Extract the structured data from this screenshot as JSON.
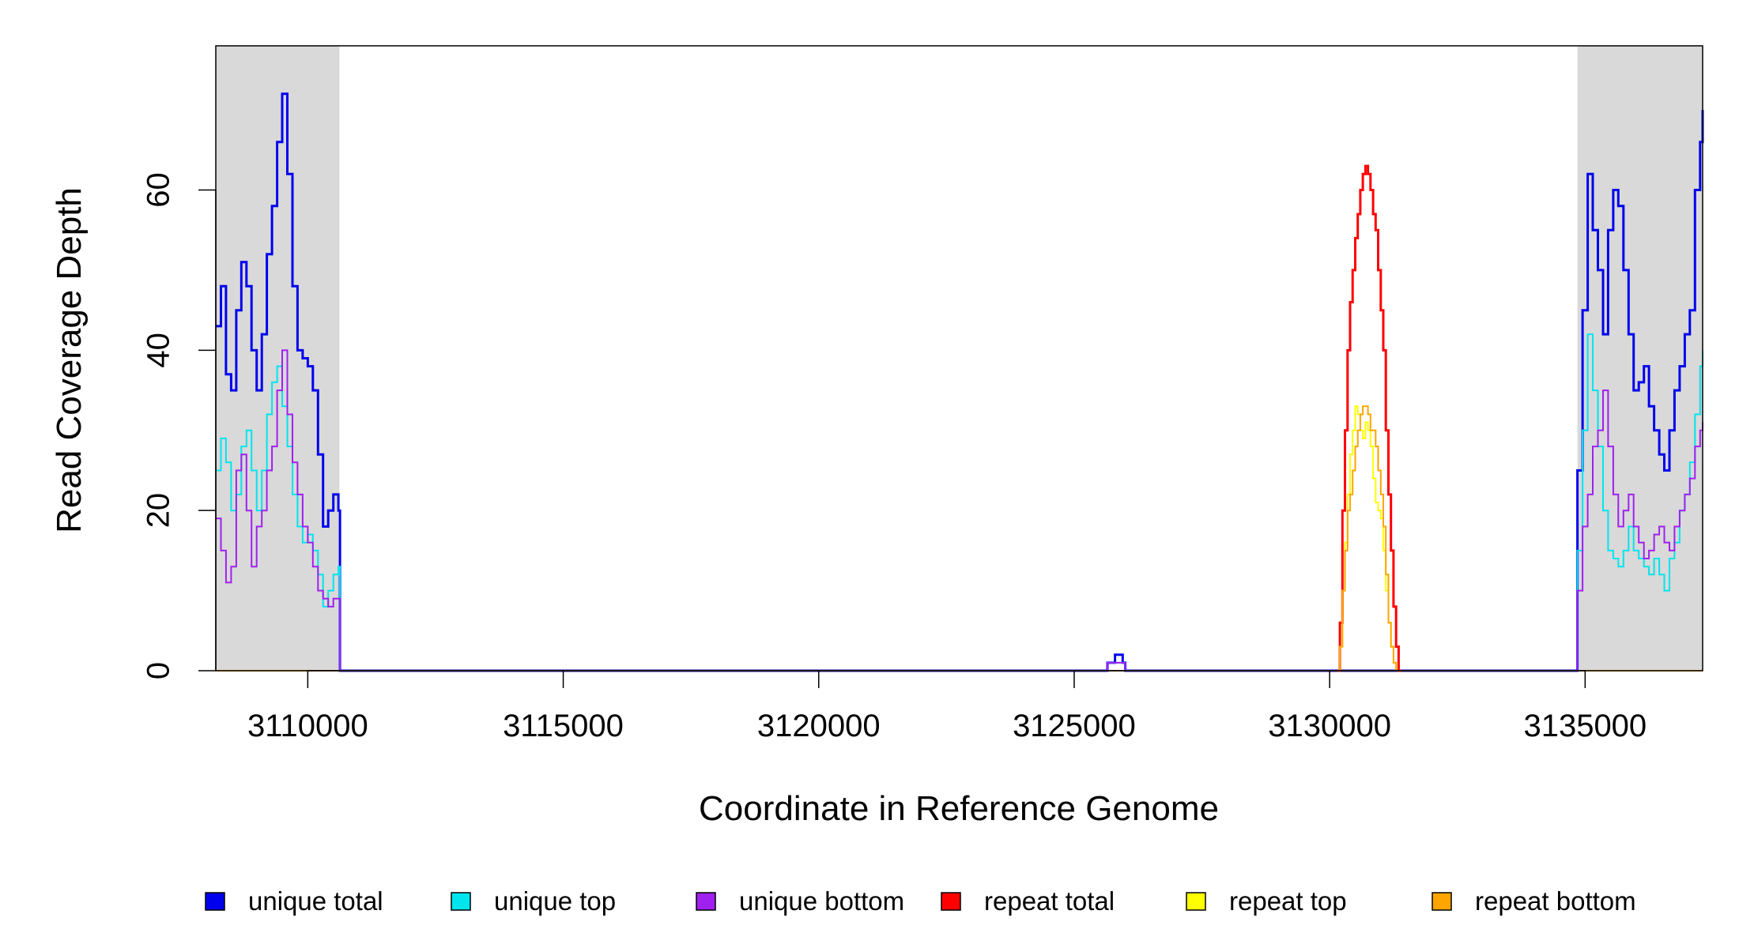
{
  "chart_data": {
    "type": "line",
    "xlabel": "Coordinate in Reference Genome",
    "ylabel": "Read Coverage Depth",
    "xlim": [
      3108200,
      3137300
    ],
    "ylim": [
      0,
      78
    ],
    "x_ticks": [
      3110000,
      3115000,
      3120000,
      3125000,
      3130000,
      3135000
    ],
    "y_ticks": [
      0,
      20,
      40,
      60
    ],
    "shaded_regions": [
      {
        "x_start": 3108200,
        "x_end": 3110620,
        "color": "#d9d9d9"
      },
      {
        "x_start": 3134850,
        "x_end": 3137300,
        "color": "#d9d9d9"
      }
    ],
    "legend_position": "bottom",
    "series": [
      {
        "name": "unique total",
        "color": "#0000ee",
        "width": 3,
        "x": [
          3108200,
          3108300,
          3108400,
          3108500,
          3108600,
          3108700,
          3108800,
          3108900,
          3109000,
          3109100,
          3109200,
          3109300,
          3109400,
          3109500,
          3109600,
          3109700,
          3109800,
          3109900,
          3110000,
          3110100,
          3110200,
          3110300,
          3110400,
          3110500,
          3110600,
          3110630,
          3125600,
          3125650,
          3125800,
          3125950,
          3126000,
          3134800,
          3134850,
          3134950,
          3135050,
          3135150,
          3135250,
          3135350,
          3135450,
          3135550,
          3135650,
          3135750,
          3135850,
          3135950,
          3136050,
          3136150,
          3136250,
          3136350,
          3136450,
          3136550,
          3136650,
          3136750,
          3136850,
          3136950,
          3137050,
          3137150,
          3137250,
          3137300
        ],
        "y": [
          43,
          48,
          37,
          35,
          45,
          51,
          48,
          40,
          35,
          42,
          52,
          58,
          66,
          72,
          62,
          48,
          40,
          39,
          38,
          35,
          27,
          18,
          20,
          22,
          20,
          0,
          0,
          1,
          2,
          1,
          0,
          0,
          25,
          45,
          62,
          55,
          50,
          42,
          55,
          60,
          58,
          50,
          42,
          35,
          36,
          38,
          33,
          30,
          27,
          25,
          30,
          35,
          38,
          42,
          45,
          60,
          66,
          70
        ]
      },
      {
        "name": "unique top",
        "color": "#00e5ee",
        "width": 2,
        "x": [
          3108200,
          3108300,
          3108400,
          3108500,
          3108600,
          3108700,
          3108800,
          3108900,
          3109000,
          3109100,
          3109200,
          3109300,
          3109400,
          3109500,
          3109600,
          3109700,
          3109800,
          3109900,
          3110000,
          3110100,
          3110200,
          3110300,
          3110400,
          3110500,
          3110600,
          3110630,
          3125600,
          3125650,
          3125800,
          3125950,
          3126000,
          3134800,
          3134850,
          3134950,
          3135050,
          3135150,
          3135250,
          3135350,
          3135450,
          3135550,
          3135650,
          3135750,
          3135850,
          3135950,
          3136050,
          3136150,
          3136250,
          3136350,
          3136450,
          3136550,
          3136650,
          3136750,
          3136850,
          3136950,
          3137050,
          3137150,
          3137250,
          3137300
        ],
        "y": [
          25,
          29,
          26,
          20,
          22,
          28,
          30,
          25,
          20,
          25,
          32,
          36,
          38,
          33,
          28,
          22,
          18,
          16,
          17,
          15,
          12,
          8,
          10,
          12,
          13,
          0,
          0,
          1,
          1,
          1,
          0,
          0,
          15,
          30,
          42,
          35,
          28,
          20,
          15,
          14,
          13,
          15,
          18,
          15,
          14,
          13,
          12,
          14,
          12,
          10,
          14,
          16,
          20,
          22,
          26,
          32,
          38,
          40
        ]
      },
      {
        "name": "unique bottom",
        "color": "#a020f0",
        "width": 2,
        "x": [
          3108200,
          3108300,
          3108400,
          3108500,
          3108600,
          3108700,
          3108800,
          3108900,
          3109000,
          3109100,
          3109200,
          3109300,
          3109400,
          3109500,
          3109600,
          3109700,
          3109800,
          3109900,
          3110000,
          3110100,
          3110200,
          3110300,
          3110400,
          3110500,
          3110600,
          3110630,
          3125600,
          3125650,
          3125800,
          3125950,
          3126000,
          3134800,
          3134850,
          3134950,
          3135050,
          3135150,
          3135250,
          3135350,
          3135450,
          3135550,
          3135650,
          3135750,
          3135850,
          3135950,
          3136050,
          3136150,
          3136250,
          3136350,
          3136450,
          3136550,
          3136650,
          3136750,
          3136850,
          3136950,
          3137050,
          3137150,
          3137250,
          3137300
        ],
        "y": [
          19,
          15,
          11,
          13,
          25,
          27,
          20,
          13,
          18,
          20,
          25,
          28,
          35,
          40,
          32,
          26,
          22,
          18,
          16,
          13,
          10,
          9,
          8,
          9,
          9,
          0,
          0,
          1,
          1,
          1,
          0,
          0,
          10,
          18,
          22,
          28,
          30,
          35,
          28,
          22,
          18,
          20,
          22,
          18,
          16,
          14,
          15,
          17,
          18,
          16,
          15,
          18,
          20,
          22,
          24,
          28,
          30,
          31
        ]
      },
      {
        "name": "repeat total",
        "color": "#ff0000",
        "width": 3,
        "x": [
          3130150,
          3130200,
          3130250,
          3130300,
          3130350,
          3130400,
          3130450,
          3130500,
          3130550,
          3130600,
          3130650,
          3130700,
          3130750,
          3130800,
          3130850,
          3130900,
          3130950,
          3131000,
          3131050,
          3131100,
          3131150,
          3131200,
          3131250,
          3131300,
          3131350,
          3131400
        ],
        "y": [
          0,
          6,
          20,
          30,
          40,
          46,
          50,
          54,
          57,
          60,
          62,
          63,
          62,
          60,
          57,
          55,
          50,
          45,
          40,
          30,
          22,
          15,
          8,
          3,
          0,
          0
        ]
      },
      {
        "name": "repeat top",
        "color": "#ffff00",
        "width": 2,
        "x": [
          3130150,
          3130200,
          3130250,
          3130300,
          3130350,
          3130400,
          3130450,
          3130500,
          3130550,
          3130600,
          3130650,
          3130700,
          3130750,
          3130800,
          3130850,
          3130900,
          3130950,
          3131000,
          3131050,
          3131100,
          3131150,
          3131200,
          3131250,
          3131300,
          3131350,
          3131400
        ],
        "y": [
          0,
          3,
          10,
          16,
          22,
          27,
          30,
          33,
          32,
          30,
          29,
          31,
          30,
          28,
          24,
          21,
          20,
          19,
          15,
          10,
          6,
          3,
          1,
          0,
          0,
          0
        ]
      },
      {
        "name": "repeat bottom",
        "color": "#ffa500",
        "width": 2,
        "x": [
          3108200,
          3137300,
          3130150,
          3130200,
          3130250,
          3130300,
          3130350,
          3130400,
          3130450,
          3130500,
          3130550,
          3130600,
          3130650,
          3130700,
          3130750,
          3130800,
          3130850,
          3130900,
          3130950,
          3131000,
          3131050,
          3131100,
          3131150,
          3131200,
          3131250,
          3131300,
          3131350,
          3131400
        ],
        "y": [
          0,
          0,
          0,
          3,
          10,
          15,
          20,
          22,
          25,
          28,
          30,
          32,
          33,
          33,
          32,
          30,
          30,
          28,
          25,
          22,
          18,
          12,
          6,
          3,
          1,
          0,
          0,
          0
        ]
      }
    ]
  }
}
